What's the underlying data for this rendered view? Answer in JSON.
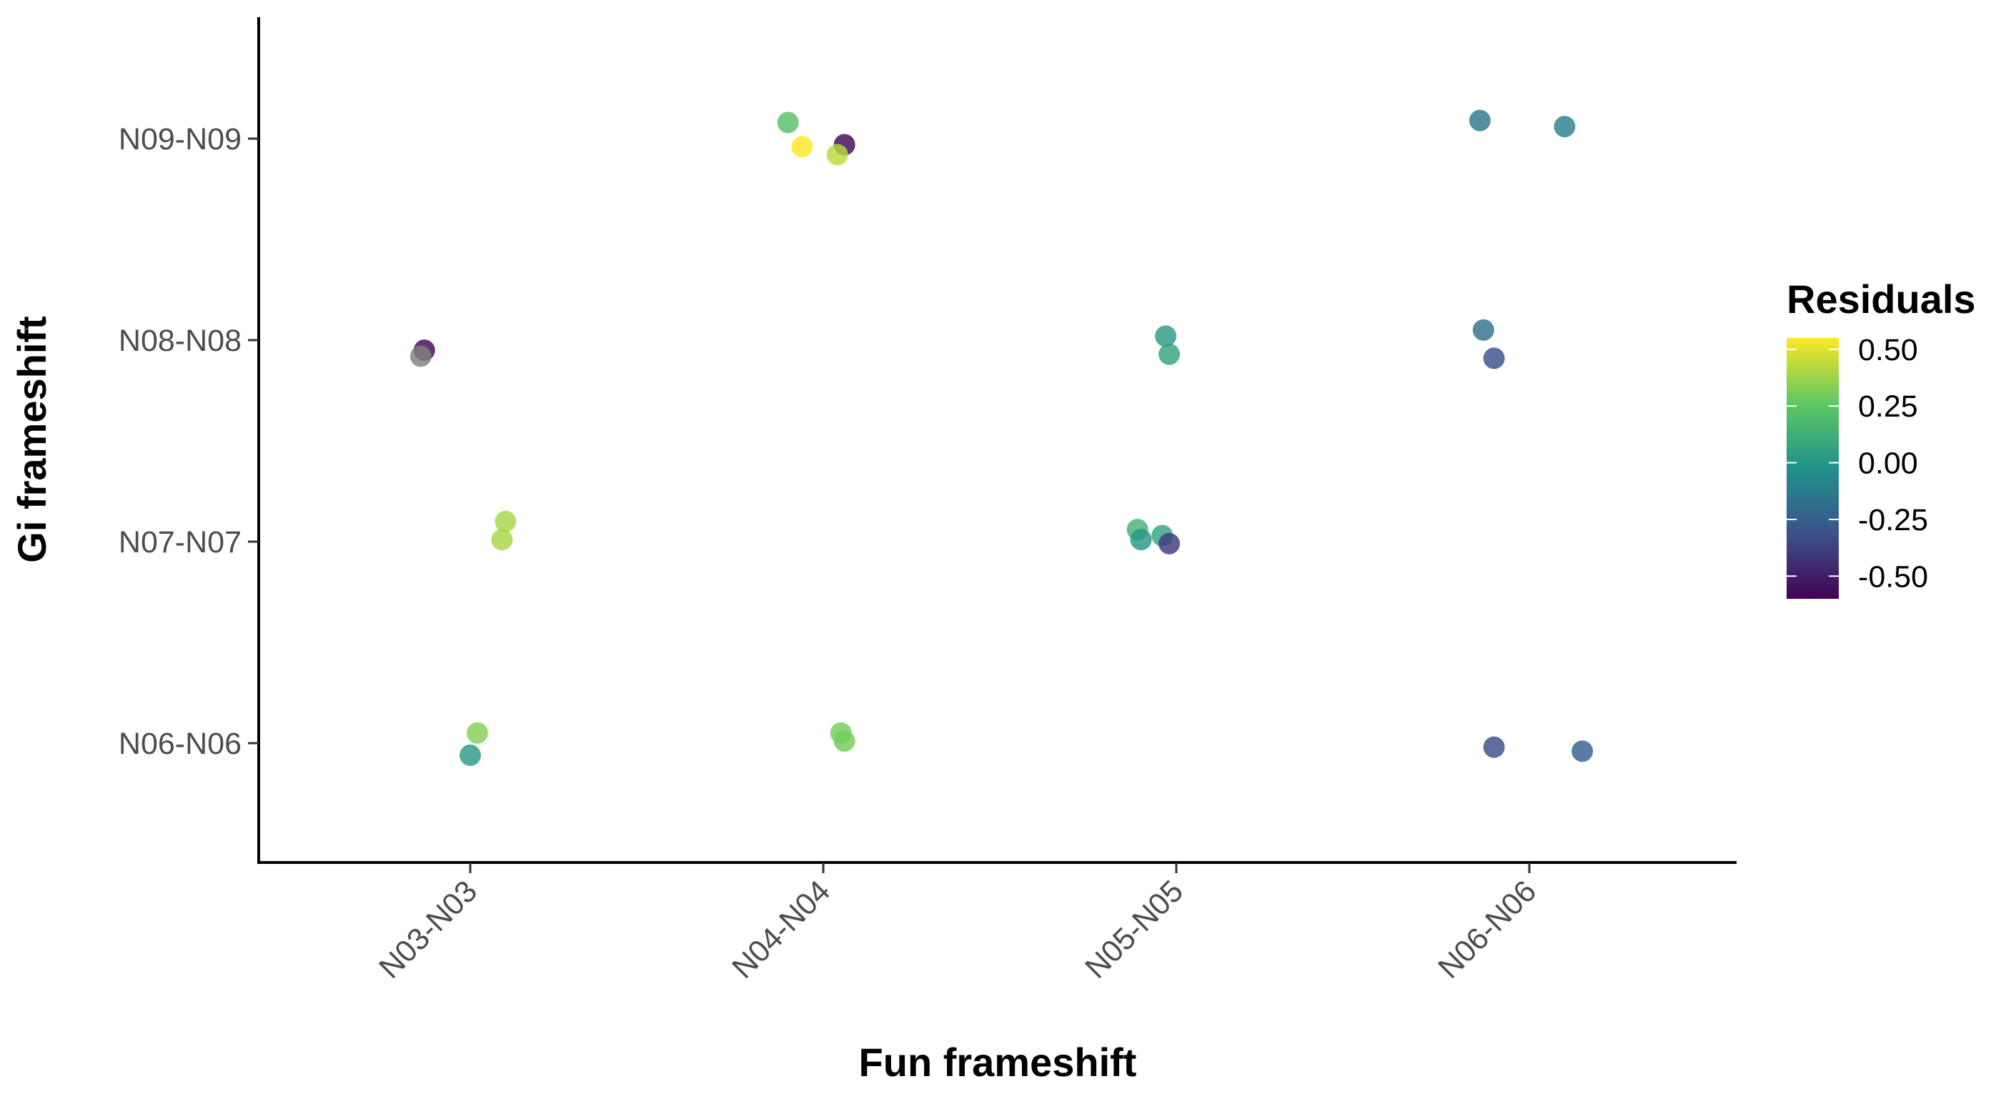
{
  "chart_data": {
    "type": "scatter",
    "title": "",
    "xlabel": "Fun frameshift",
    "ylabel": "Gi frameshift",
    "x_categories": [
      "N03-N03",
      "N04-N04",
      "N05-N05",
      "N06-N06"
    ],
    "y_categories": [
      "N06-N06",
      "N07-N07",
      "N08-N08",
      "N09-N09"
    ],
    "grid": false,
    "legend": {
      "title": "Residuals",
      "placement": "right",
      "type": "colorbar",
      "range": [
        -0.6,
        0.55
      ],
      "ticks": [
        0.5,
        0.25,
        0.0,
        -0.25,
        -0.5
      ],
      "tick_labels": [
        "0.50",
        "0.25",
        "0.00",
        "-0.25",
        "-0.50"
      ],
      "palette": [
        "#440154",
        "#3b528b",
        "#21918c",
        "#5ec962",
        "#fde725"
      ]
    },
    "na_color": "#808080",
    "points": [
      {
        "x": "N03-N03",
        "y": "N06-N06",
        "x_jitter": 0.02,
        "y_jitter": 0.05,
        "residual": 0.33
      },
      {
        "x": "N03-N03",
        "y": "N06-N06",
        "x_jitter": 0.0,
        "y_jitter": -0.06,
        "residual": 0.02
      },
      {
        "x": "N03-N03",
        "y": "N07-N07",
        "x_jitter": 0.1,
        "y_jitter": 0.1,
        "residual": 0.4
      },
      {
        "x": "N03-N03",
        "y": "N07-N07",
        "x_jitter": 0.09,
        "y_jitter": 0.01,
        "residual": 0.4
      },
      {
        "x": "N03-N03",
        "y": "N08-N08",
        "x_jitter": -0.13,
        "y_jitter": -0.05,
        "residual": -0.58
      },
      {
        "x": "N03-N03",
        "y": "N08-N08",
        "x_jitter": -0.14,
        "y_jitter": -0.08,
        "residual": null
      },
      {
        "x": "N04-N04",
        "y": "N06-N06",
        "x_jitter": 0.05,
        "y_jitter": 0.05,
        "residual": 0.3
      },
      {
        "x": "N04-N04",
        "y": "N06-N06",
        "x_jitter": 0.06,
        "y_jitter": 0.01,
        "residual": 0.3
      },
      {
        "x": "N04-N04",
        "y": "N09-N09",
        "x_jitter": -0.1,
        "y_jitter": 0.08,
        "residual": 0.22
      },
      {
        "x": "N04-N04",
        "y": "N09-N09",
        "x_jitter": -0.06,
        "y_jitter": -0.04,
        "residual": 0.55
      },
      {
        "x": "N04-N04",
        "y": "N09-N09",
        "x_jitter": 0.06,
        "y_jitter": -0.03,
        "residual": -0.58
      },
      {
        "x": "N04-N04",
        "y": "N09-N09",
        "x_jitter": 0.04,
        "y_jitter": -0.08,
        "residual": 0.43
      },
      {
        "x": "N05-N05",
        "y": "N07-N07",
        "x_jitter": -0.11,
        "y_jitter": 0.06,
        "residual": 0.14
      },
      {
        "x": "N05-N05",
        "y": "N07-N07",
        "x_jitter": -0.1,
        "y_jitter": 0.01,
        "residual": 0.0
      },
      {
        "x": "N05-N05",
        "y": "N07-N07",
        "x_jitter": -0.04,
        "y_jitter": 0.03,
        "residual": 0.06
      },
      {
        "x": "N05-N05",
        "y": "N07-N07",
        "x_jitter": -0.02,
        "y_jitter": -0.01,
        "residual": -0.4
      },
      {
        "x": "N05-N05",
        "y": "N08-N08",
        "x_jitter": -0.03,
        "y_jitter": 0.02,
        "residual": 0.02
      },
      {
        "x": "N05-N05",
        "y": "N08-N08",
        "x_jitter": -0.02,
        "y_jitter": -0.07,
        "residual": 0.07
      },
      {
        "x": "N06-N06",
        "y": "N06-N06",
        "x_jitter": -0.1,
        "y_jitter": -0.02,
        "residual": -0.33
      },
      {
        "x": "N06-N06",
        "y": "N06-N06",
        "x_jitter": 0.15,
        "y_jitter": -0.04,
        "residual": -0.25
      },
      {
        "x": "N06-N06",
        "y": "N08-N08",
        "x_jitter": -0.13,
        "y_jitter": 0.05,
        "residual": -0.17
      },
      {
        "x": "N06-N06",
        "y": "N08-N08",
        "x_jitter": -0.1,
        "y_jitter": -0.09,
        "residual": -0.32
      },
      {
        "x": "N06-N06",
        "y": "N09-N09",
        "x_jitter": -0.14,
        "y_jitter": 0.09,
        "residual": -0.15
      },
      {
        "x": "N06-N06",
        "y": "N09-N09",
        "x_jitter": 0.1,
        "y_jitter": 0.06,
        "residual": -0.1
      }
    ]
  }
}
